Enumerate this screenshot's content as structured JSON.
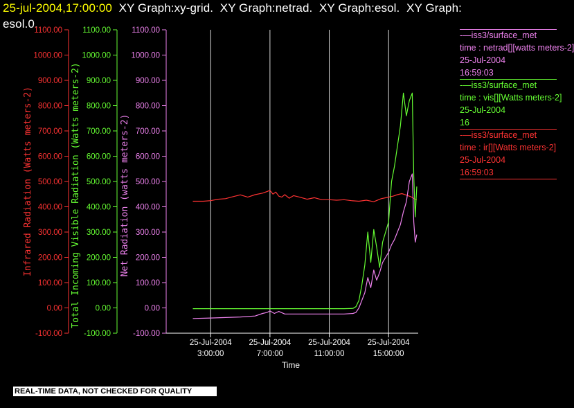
{
  "header": {
    "timestamp": "25-jul-2004,17:00:00",
    "titles_line1": "  XY Graph:xy-grid.  XY Graph:netrad.  XY Graph:esol.  XY Graph:",
    "titles_line2": "esol.0."
  },
  "footer_note": "REAL-TIME DATA, NOT CHECKED FOR QUALITY",
  "legend": [
    {
      "line1": "-—iss3/surface_met",
      "line2": "time : netrad[][watts meters-2]",
      "line3": "25-Jul-2004",
      "line4": "16:59:03",
      "color": "#ee82ee"
    },
    {
      "line1": "-—iss3/surface_met",
      "line2": "time : vis[][Watts meters-2]",
      "line3": "25-Jul-2004",
      "line4": "16",
      "color": "#66ff33"
    },
    {
      "line1": "-—iss3/surface_met",
      "line2": "time : ir[][Watts meters-2]",
      "line3": "25-Jul-2004",
      "line4": "16:59:03",
      "color": "#ff3333"
    }
  ],
  "colors": {
    "background": "#000000",
    "ir": "#ff3333",
    "vis": "#66ff33",
    "netrad": "#ee82ee",
    "grid": "#ffffff",
    "timestamp": "#ffff00"
  },
  "chart_data": {
    "type": "line",
    "xlabel": "Time",
    "x_ticks": [
      {
        "date": "25-Jul-2004",
        "time": "3:00:00",
        "hour": 3
      },
      {
        "date": "25-Jul-2004",
        "time": "7:00:00",
        "hour": 7
      },
      {
        "date": "25-Jul-2004",
        "time": "11:00:00",
        "hour": 11
      },
      {
        "date": "25-Jul-2004",
        "time": "15:00:00",
        "hour": 15
      }
    ],
    "xlim_hours": [
      0.0,
      17.0
    ],
    "y_axes": [
      {
        "key": "ir",
        "label": "Infrared Radiation (Watts meters-2)",
        "color": "#ff3333",
        "ylim": [
          -100,
          1100
        ],
        "ticks": [
          "-100.00",
          "0.00",
          "100.00",
          "200.00",
          "300.00",
          "400.00",
          "500.00",
          "600.00",
          "700.00",
          "800.00",
          "900.00",
          "1000.00",
          "1100.00"
        ]
      },
      {
        "key": "vis",
        "label": "Total Incoming Visible Radiation (Watts meters-2)",
        "color": "#66ff33",
        "ylim": [
          -100,
          1100
        ],
        "ticks": [
          "-100.00",
          "0.00",
          "100.00",
          "200.00",
          "300.00",
          "400.00",
          "500.00",
          "600.00",
          "700.00",
          "800.00",
          "900.00",
          "1000.00",
          "1100.00"
        ]
      },
      {
        "key": "netrad",
        "label": "Net Radiation (watts meters-2)",
        "color": "#ee82ee",
        "ylim": [
          -100,
          1100
        ],
        "ticks": [
          "-100.00",
          "0.00",
          "100.00",
          "200.00",
          "300.00",
          "400.00",
          "500.00",
          "600.00",
          "700.00",
          "800.00",
          "900.00",
          "1000.00",
          "1100.00"
        ]
      }
    ],
    "grid": "vertical lines at x ticks",
    "series": [
      {
        "name": "ir",
        "color": "#ff3333",
        "x": [
          1.8,
          2.5,
          3.0,
          3.5,
          4.0,
          4.5,
          5.0,
          5.5,
          6.0,
          6.5,
          6.8,
          7.0,
          7.2,
          7.4,
          7.6,
          7.8,
          8.0,
          8.3,
          8.6,
          9.0,
          9.5,
          10.0,
          10.5,
          11.0,
          11.5,
          12.0,
          12.5,
          13.0,
          13.5,
          14.0,
          14.5,
          15.0,
          15.3,
          15.6,
          15.9,
          16.2,
          16.5,
          16.8,
          16.9
        ],
        "y": [
          422,
          422,
          424,
          430,
          432,
          440,
          447,
          438,
          448,
          454,
          460,
          465,
          450,
          458,
          442,
          438,
          448,
          434,
          444,
          438,
          430,
          436,
          428,
          428,
          426,
          428,
          424,
          422,
          426,
          420,
          432,
          438,
          442,
          448,
          452,
          446,
          440,
          430,
          428
        ]
      },
      {
        "name": "vis",
        "color": "#66ff33",
        "x": [
          1.8,
          3.0,
          4.0,
          5.0,
          6.0,
          7.0,
          8.0,
          9.0,
          10.0,
          11.0,
          12.0,
          12.6,
          12.8,
          13.0,
          13.2,
          13.4,
          13.6,
          13.8,
          14.0,
          14.2,
          14.4,
          14.6,
          14.8,
          15.0,
          15.2,
          15.4,
          15.6,
          15.8,
          16.0,
          16.2,
          16.4,
          16.6,
          16.7,
          16.8,
          16.9
        ],
        "y": [
          -3,
          -3,
          -3,
          -3,
          -3,
          -3,
          -3,
          -3,
          -3,
          -3,
          -3,
          -2,
          5,
          30,
          90,
          170,
          300,
          180,
          310,
          240,
          160,
          260,
          300,
          340,
          500,
          560,
          640,
          720,
          850,
          760,
          820,
          850,
          520,
          360,
          480
        ]
      },
      {
        "name": "netrad",
        "color": "#ee82ee",
        "x": [
          1.8,
          3.0,
          4.0,
          5.0,
          6.0,
          6.5,
          6.8,
          7.0,
          7.3,
          7.6,
          8.0,
          9.0,
          10.0,
          11.0,
          12.0,
          12.6,
          12.8,
          13.0,
          13.2,
          13.4,
          13.6,
          13.8,
          14.0,
          14.2,
          14.4,
          14.6,
          14.8,
          15.0,
          15.2,
          15.4,
          15.6,
          15.8,
          16.0,
          16.2,
          16.4,
          16.6,
          16.7,
          16.8,
          16.9
        ],
        "y": [
          -42,
          -40,
          -38,
          -36,
          -32,
          -22,
          -18,
          -12,
          -22,
          -14,
          -24,
          -24,
          -24,
          -24,
          -24,
          -22,
          -18,
          0,
          30,
          60,
          120,
          80,
          150,
          110,
          140,
          180,
          200,
          220,
          250,
          270,
          300,
          330,
          380,
          420,
          500,
          530,
          340,
          260,
          290
        ]
      }
    ]
  }
}
